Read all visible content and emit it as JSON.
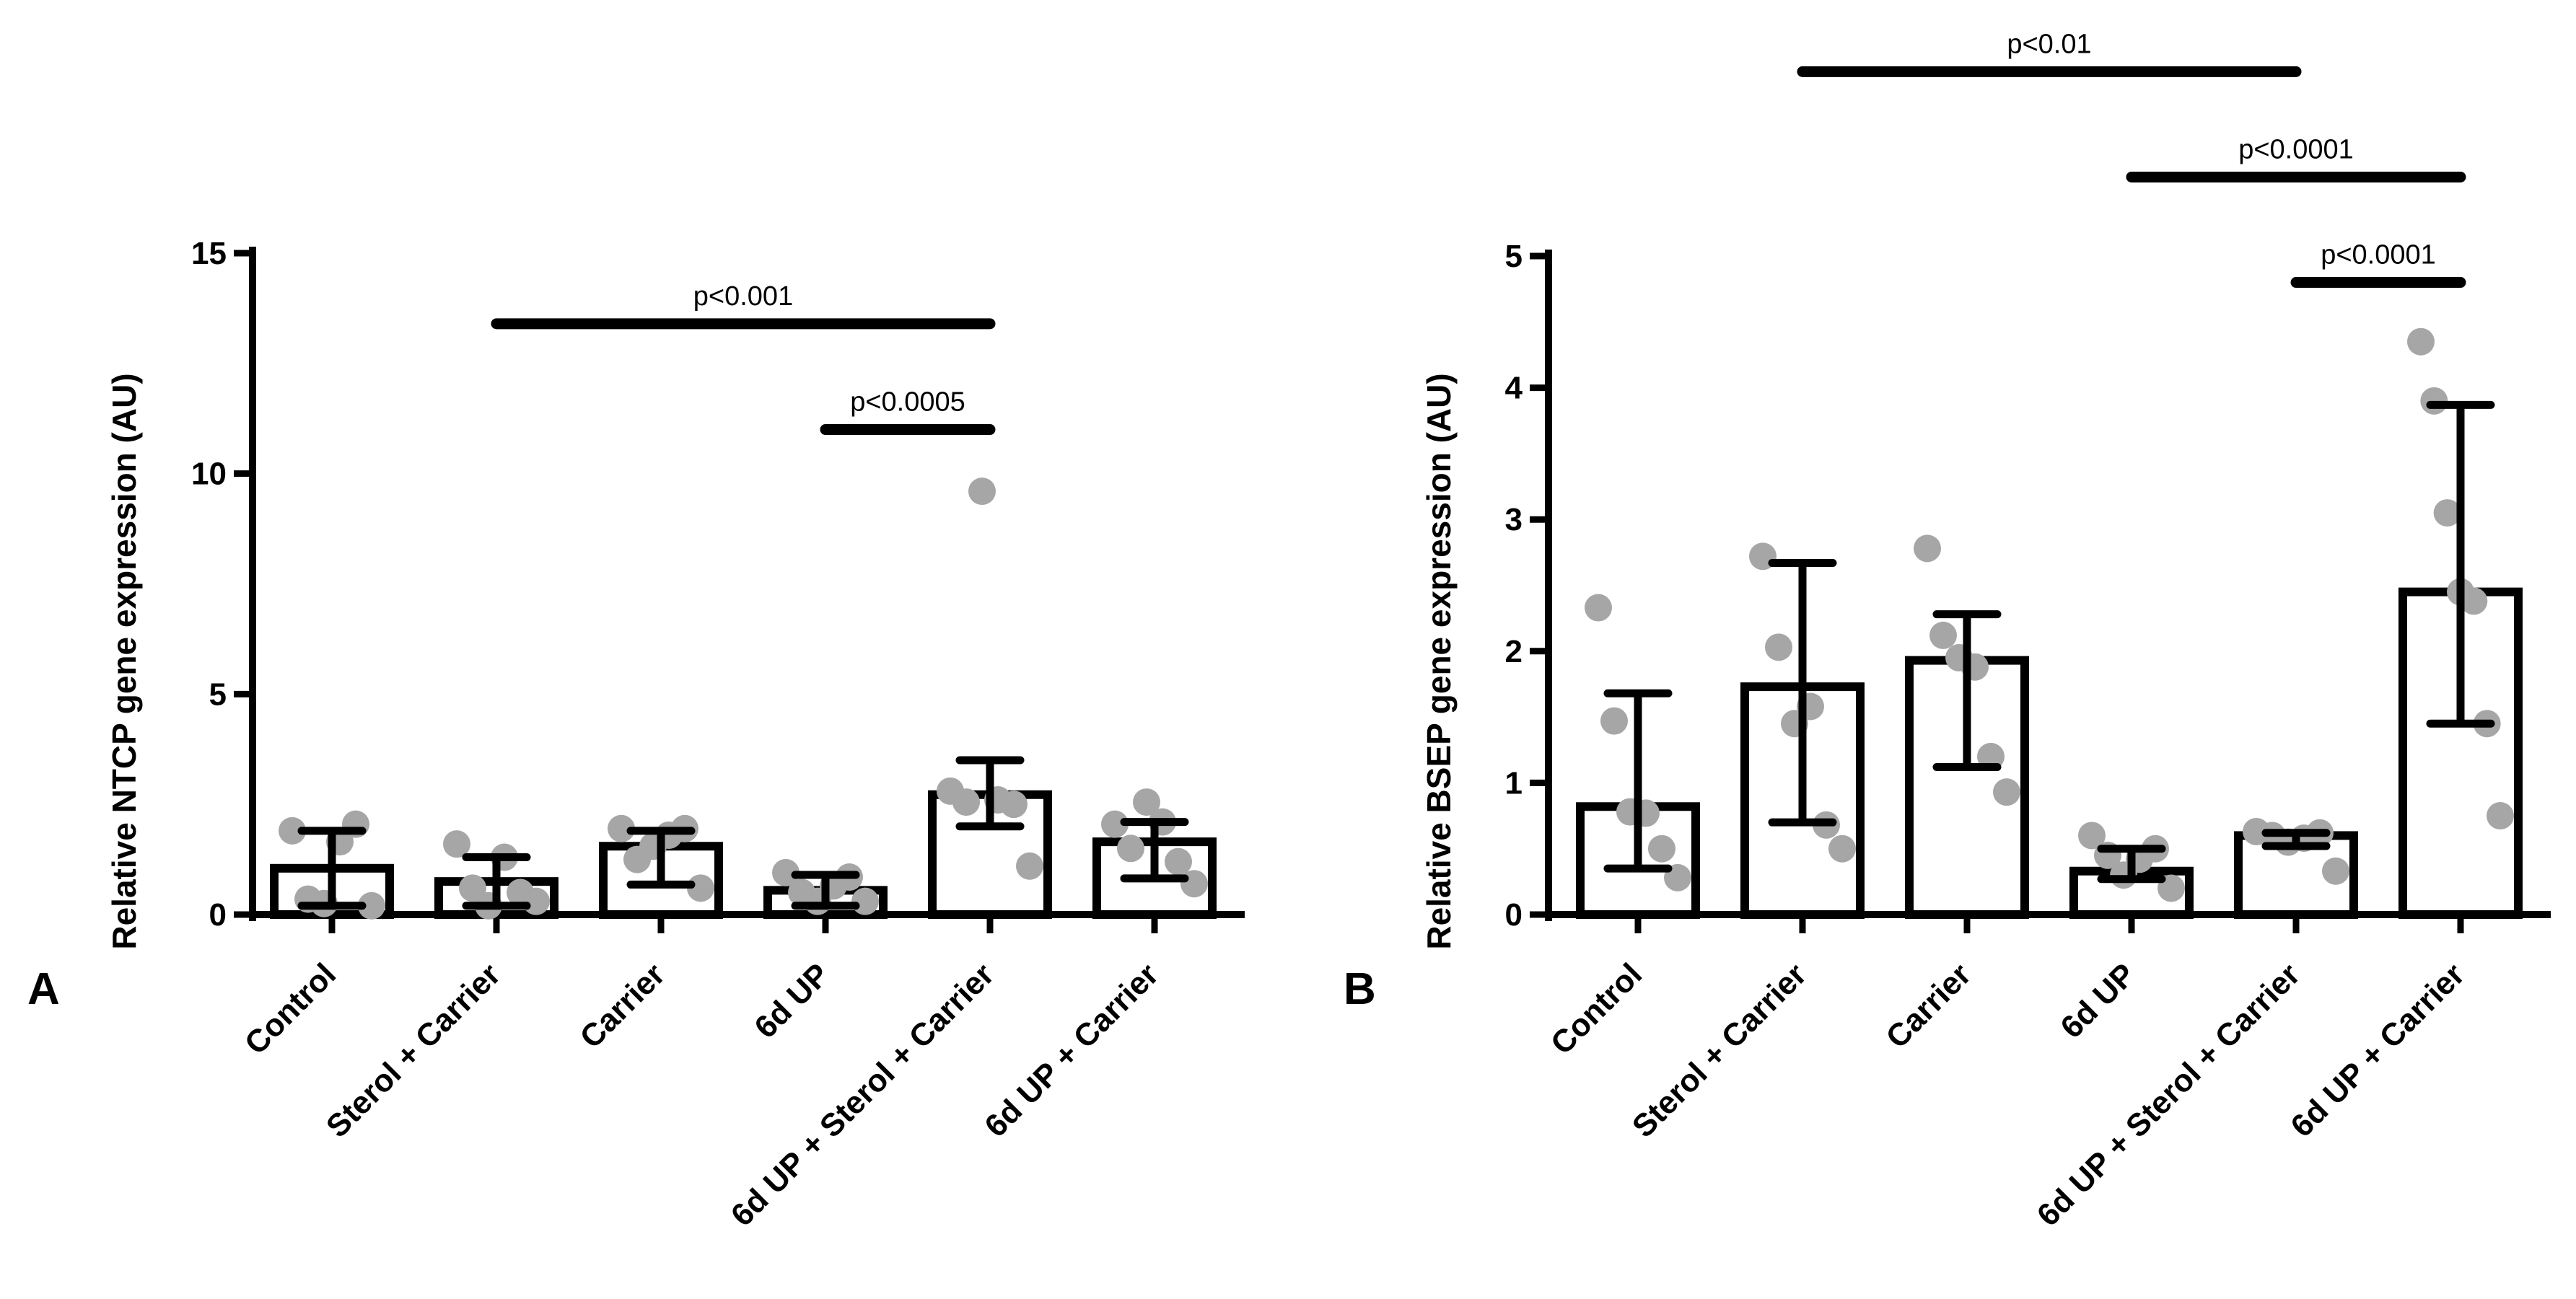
{
  "chart_data": [
    {
      "type": "bar",
      "panel": "A",
      "ylabel": "Relative NTCP gene expression (AU)",
      "ylim": [
        0,
        15
      ],
      "yticks": [
        0,
        5,
        10,
        15
      ],
      "categories": [
        "Control",
        "Sterol + Carrier",
        "Carrier",
        "6d UP",
        "6d UP + Sterol + Carrier",
        "6d UP + Carrier"
      ],
      "means": [
        1.05,
        0.75,
        1.55,
        0.55,
        2.72,
        1.65
      ],
      "error_low": [
        0.2,
        0.2,
        0.68,
        0.2,
        2.0,
        0.82
      ],
      "error_high": [
        1.9,
        1.3,
        1.9,
        0.9,
        3.5,
        2.1
      ],
      "points": [
        [
          1.9,
          0.35,
          0.25,
          1.65,
          2.05,
          0.2
        ],
        [
          1.6,
          0.6,
          0.2,
          1.3,
          0.5,
          0.3
        ],
        [
          1.95,
          1.25,
          1.55,
          1.8,
          1.95,
          0.6
        ],
        [
          0.95,
          0.5,
          0.3,
          0.65,
          0.85,
          0.3
        ],
        [
          2.8,
          2.55,
          9.6,
          2.6,
          2.5,
          1.1
        ],
        [
          2.05,
          1.5,
          2.55,
          2.1,
          1.2,
          0.7
        ]
      ],
      "significance": [
        {
          "label": "p<0.001",
          "from": 1,
          "to": 4,
          "y": 13.4
        },
        {
          "label": "p<0.0005",
          "from": 3,
          "to": 4,
          "y": 11.0
        }
      ],
      "colors": {
        "bar_stroke": "#000000",
        "bar_fill": "#ffffff",
        "point": "#a6a6a6"
      }
    },
    {
      "type": "bar",
      "panel": "B",
      "ylabel": "Relative BSEP gene expression (AU)",
      "ylim": [
        0,
        5
      ],
      "yticks": [
        0,
        1,
        2,
        3,
        4,
        5
      ],
      "categories": [
        "Control",
        "Sterol + Carrier",
        "Carrier",
        "6d UP",
        "6d UP + Sterol + Carrier",
        "6d UP + Carrier"
      ],
      "means": [
        0.82,
        1.73,
        1.93,
        0.33,
        0.6,
        2.45
      ],
      "error_low": [
        0.35,
        0.7,
        1.12,
        0.27,
        0.52,
        1.45
      ],
      "error_high": [
        1.68,
        2.67,
        2.28,
        0.5,
        0.62,
        3.87
      ],
      "points": [
        [
          2.33,
          1.47,
          0.78,
          0.77,
          0.5,
          0.28
        ],
        [
          2.72,
          2.03,
          1.45,
          1.58,
          0.68,
          0.5
        ],
        [
          2.78,
          2.12,
          1.95,
          1.88,
          1.2,
          0.93
        ],
        [
          0.6,
          0.45,
          0.3,
          0.42,
          0.5,
          0.2
        ],
        [
          0.63,
          0.6,
          0.55,
          0.58,
          0.62,
          0.33
        ],
        [
          4.35,
          3.9,
          3.05,
          2.45,
          2.38,
          1.45,
          0.75
        ]
      ],
      "significance": [
        {
          "label": "p<0.01",
          "from": 1,
          "to": 4,
          "y": 6.4
        },
        {
          "label": "p<0.0001",
          "from": 3,
          "to": 5,
          "y": 5.6
        },
        {
          "label": "p<0.0001",
          "from": 4,
          "to": 5,
          "y": 4.8
        }
      ],
      "colors": {
        "bar_stroke": "#000000",
        "bar_fill": "#ffffff",
        "point": "#a6a6a6"
      }
    }
  ]
}
